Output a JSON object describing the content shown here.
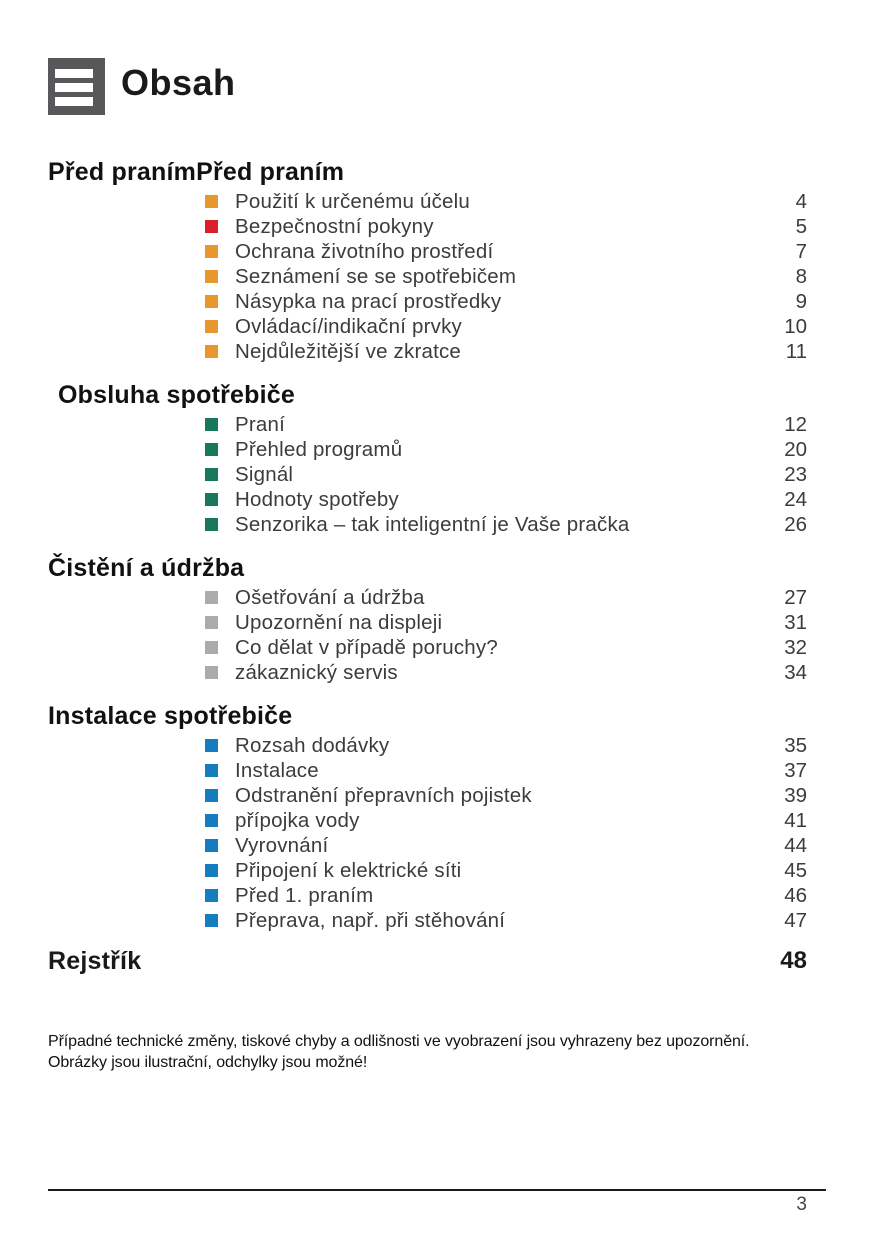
{
  "page": {
    "title": "Obsah",
    "page_number": "3",
    "footer_line1": "Případné technické změny, tiskové chyby a odlišnosti ve vyobrazení jsou vyhrazeny bez upozornění.",
    "footer_line2": "Obrázky jsou ilustrační, odchylky jsou možné!"
  },
  "colors": {
    "bullet_orange": "#E8972E",
    "bullet_red": "#D9212E",
    "bullet_teal": "#17785B",
    "bullet_gray": "#ABABAB",
    "bullet_blue": "#147CBF",
    "icon_gray": "#58585A"
  },
  "sections": [
    {
      "heading": "Před pranímPřed praním",
      "indent": false,
      "items": [
        {
          "label": "Použití k určenému účelu",
          "page": "4",
          "bullet": "#E8972E"
        },
        {
          "label": "Bezpečnostní pokyny",
          "page": "5",
          "bullet": "#D9212E"
        },
        {
          "label": "Ochrana životního prostředí",
          "page": "7",
          "bullet": "#E8972E"
        },
        {
          "label": "Seznámení se se spotřebičem",
          "page": "8",
          "bullet": "#E8972E"
        },
        {
          "label": "Násypka na prací prostředky",
          "page": "9",
          "bullet": "#E8972E"
        },
        {
          "label": "Ovládací/indikační prvky",
          "page": "10",
          "bullet": "#E8972E"
        },
        {
          "label": "Nejdůležitější ve zkratce",
          "page": "11",
          "bullet": "#E8972E"
        }
      ]
    },
    {
      "heading": "Obsluha spotřebiče",
      "indent": true,
      "items": [
        {
          "label": "Praní",
          "page": "12",
          "bullet": "#17785B"
        },
        {
          "label": "Přehled programů",
          "page": "20",
          "bullet": "#17785B"
        },
        {
          "label": "Signál",
          "page": "23",
          "bullet": "#17785B"
        },
        {
          "label": "Hodnoty spotřeby",
          "page": "24",
          "bullet": "#17785B"
        },
        {
          "label": "Senzorika – tak inteligentní je Vaše pračka",
          "page": "26",
          "bullet": "#17785B"
        }
      ]
    },
    {
      "heading": "Čistění a údržba",
      "indent": false,
      "items": [
        {
          "label": "Ošetřování a údržba",
          "page": "27",
          "bullet": "#ABABAB"
        },
        {
          "label": "Upozornění na displeji",
          "page": "31",
          "bullet": "#ABABAB"
        },
        {
          "label": "Co dělat v případě poruchy?",
          "page": "32",
          "bullet": "#ABABAB"
        },
        {
          "label": "zákaznický servis",
          "page": "34",
          "bullet": "#ABABAB"
        }
      ]
    },
    {
      "heading": "Instalace spotřebiče",
      "indent": false,
      "items": [
        {
          "label": "Rozsah dodávky",
          "page": "35",
          "bullet": "#147CBF"
        },
        {
          "label": "Instalace",
          "page": "37",
          "bullet": "#147CBF"
        },
        {
          "label": "Odstranění přepravních pojistek",
          "page": "39",
          "bullet": "#147CBF"
        },
        {
          "label": "přípojka vody",
          "page": "41",
          "bullet": "#147CBF"
        },
        {
          "label": "Vyrovnání",
          "page": "44",
          "bullet": "#147CBF"
        },
        {
          "label": "Připojení k elektrické síti",
          "page": "45",
          "bullet": "#147CBF"
        },
        {
          "label": "Před 1. praním",
          "page": "46",
          "bullet": "#147CBF"
        },
        {
          "label": "Přeprava, např. při stěhování",
          "page": "47",
          "bullet": "#147CBF"
        }
      ]
    }
  ],
  "index": {
    "heading": "Rejstřík",
    "page": "48"
  }
}
